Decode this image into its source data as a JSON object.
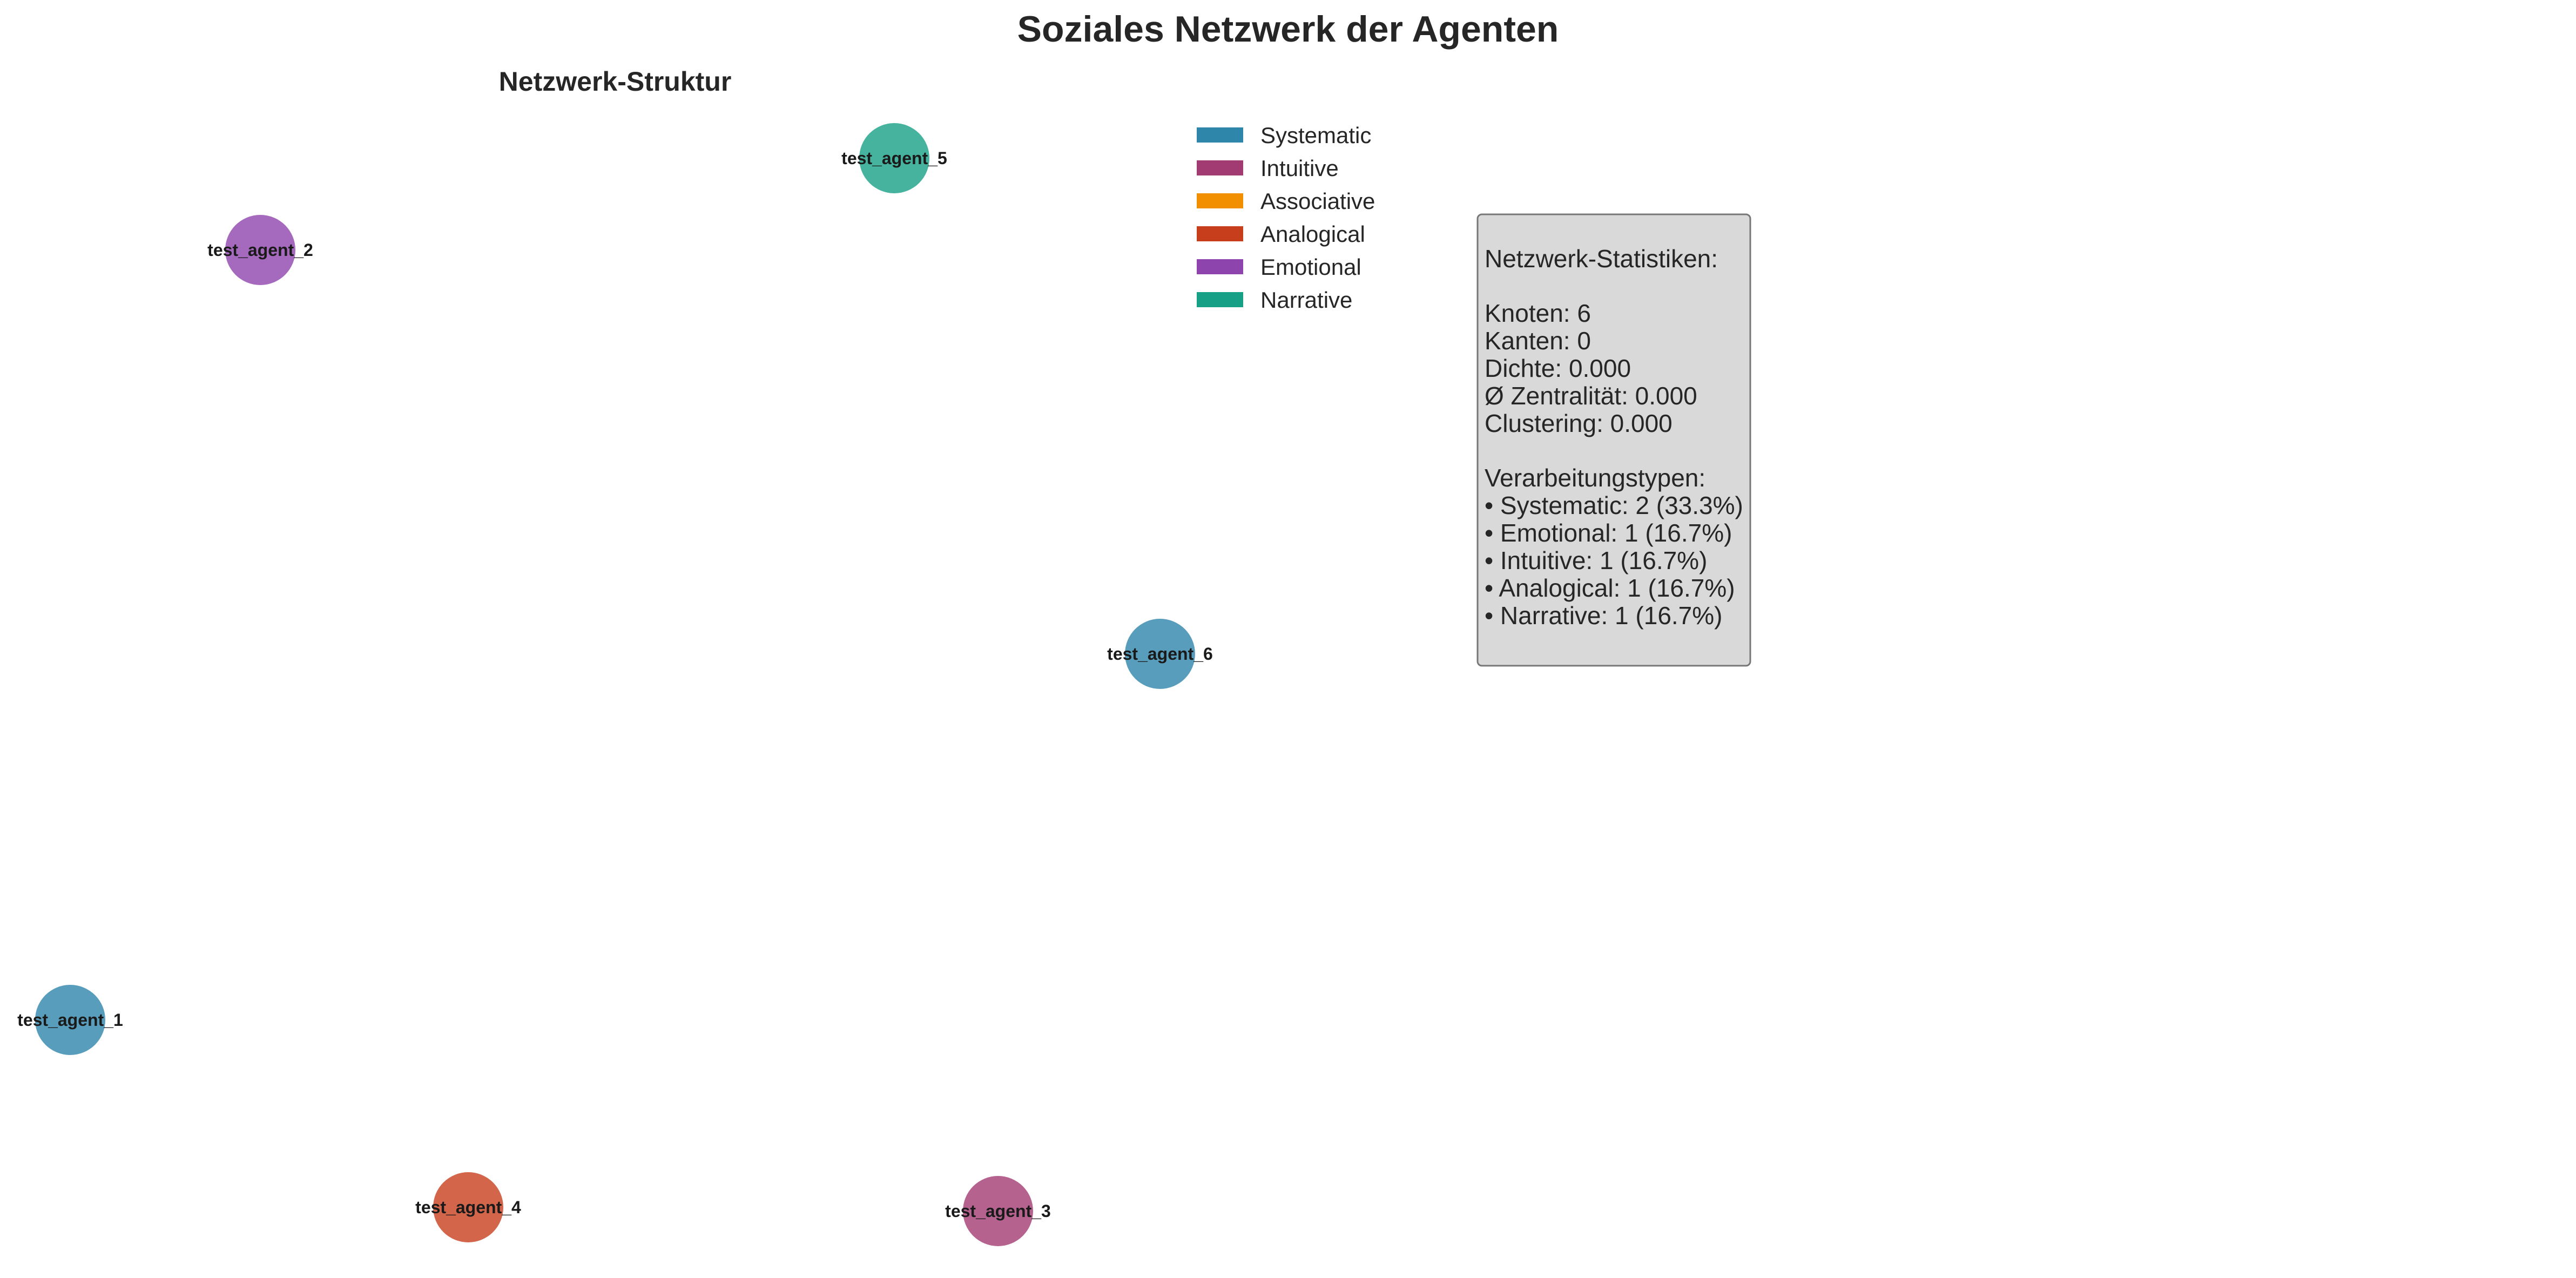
{
  "figure": {
    "title": "Soziales Netzwerk der Agenten",
    "subtitle": "Netzwerk-Struktur"
  },
  "colors": {
    "Systematic": "#2e86ab",
    "Intuitive": "#a23b72",
    "Associative": "#f18f01",
    "Analogical": "#c73e1d",
    "Emotional": "#8e44ad",
    "Narrative": "#16a085"
  },
  "legend": [
    {
      "label": "Systematic",
      "color": "#2e86ab"
    },
    {
      "label": "Intuitive",
      "color": "#a23b72"
    },
    {
      "label": "Associative",
      "color": "#f18f01"
    },
    {
      "label": "Analogical",
      "color": "#c73e1d"
    },
    {
      "label": "Emotional",
      "color": "#8e44ad"
    },
    {
      "label": "Narrative",
      "color": "#16a085"
    }
  ],
  "nodes": [
    {
      "label": "test_agent_1",
      "type": "Systematic"
    },
    {
      "label": "test_agent_2",
      "type": "Emotional"
    },
    {
      "label": "test_agent_3",
      "type": "Intuitive"
    },
    {
      "label": "test_agent_4",
      "type": "Analogical"
    },
    {
      "label": "test_agent_5",
      "type": "Narrative"
    },
    {
      "label": "test_agent_6",
      "type": "Systematic"
    }
  ],
  "edges": [],
  "stats_box": {
    "heading": "Netzwerk-Statistiken:",
    "metrics": [
      "Knoten: 6",
      "Kanten: 0",
      "Dichte: 0.000",
      "Ø Zentralität: 0.000",
      "Clustering: 0.000"
    ],
    "types_heading": "Verarbeitungstypen:",
    "types": [
      "• Systematic: 2 (33.3%)",
      "• Emotional: 1 (16.7%)",
      "• Intuitive: 1 (16.7%)",
      "• Analogical: 1 (16.7%)",
      "• Narrative: 1 (16.7%)"
    ]
  }
}
